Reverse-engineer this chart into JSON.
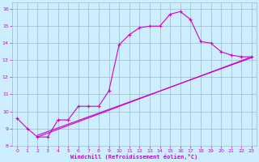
{
  "bg_color": "#cceeff",
  "line_color": "#cc00cc",
  "grid_color": "#99bbcc",
  "xlabel": "Windchill (Refroidissement éolien,°C)",
  "xlim": [
    -0.5,
    23.5
  ],
  "ylim": [
    8,
    16.4
  ],
  "xticks": [
    0,
    1,
    2,
    3,
    4,
    5,
    6,
    7,
    8,
    9,
    10,
    11,
    12,
    13,
    14,
    15,
    16,
    17,
    18,
    19,
    20,
    21,
    22,
    23
  ],
  "yticks": [
    8,
    9,
    10,
    11,
    12,
    13,
    14,
    15,
    16
  ],
  "line1_x": [
    0,
    1,
    2,
    3,
    4,
    5,
    6,
    7,
    8,
    9,
    10,
    11,
    12,
    13,
    14,
    15,
    16,
    17,
    18,
    19,
    20,
    21,
    22,
    23
  ],
  "line1_y": [
    9.6,
    9.0,
    8.5,
    8.5,
    9.5,
    9.5,
    10.3,
    10.3,
    10.3,
    11.2,
    13.9,
    14.5,
    14.9,
    15.0,
    15.0,
    15.7,
    15.85,
    15.4,
    14.1,
    14.0,
    13.5,
    13.3,
    13.2,
    13.2
  ],
  "line2_x": [
    2,
    23
  ],
  "line2_y": [
    8.5,
    13.2
  ],
  "line3_x": [
    2,
    23
  ],
  "line3_y": [
    8.6,
    13.15
  ]
}
